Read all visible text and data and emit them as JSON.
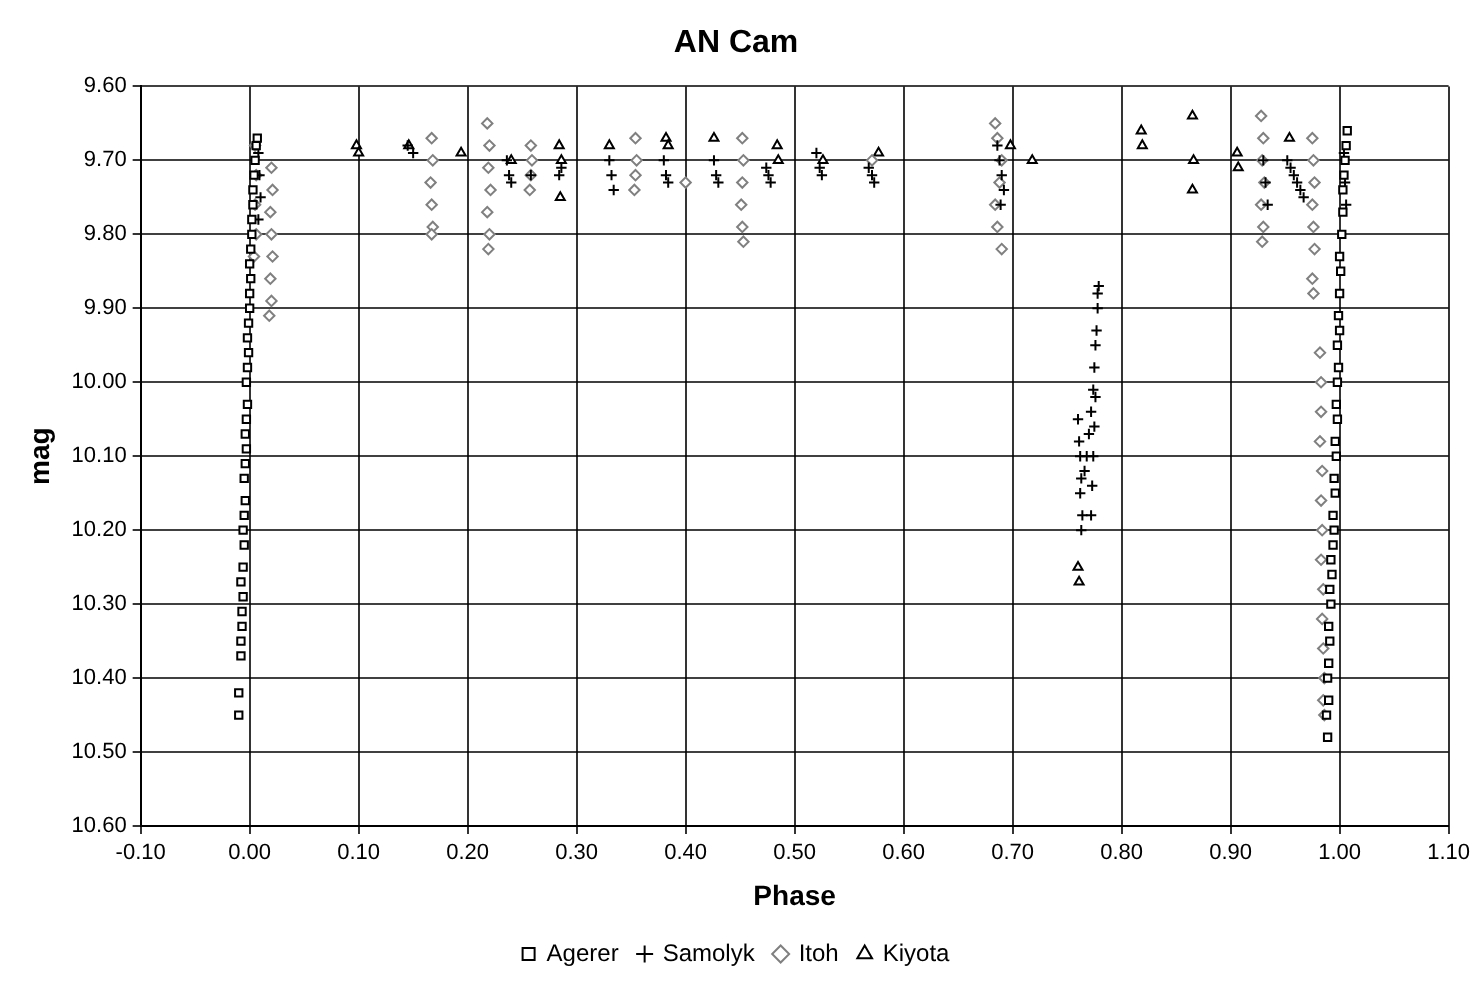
{
  "chart_data": {
    "type": "scatter",
    "title": "AN Cam",
    "xlabel": "Phase",
    "ylabel": "mag",
    "xlim": [
      -0.1,
      1.1
    ],
    "xticks": [
      {
        "value": -0.1,
        "label": "-0.10"
      },
      {
        "value": 0,
        "label": "0.00"
      },
      {
        "value": 0.1,
        "label": "0.10"
      },
      {
        "value": 0.2,
        "label": "0.20"
      },
      {
        "value": 0.3,
        "label": "0.30"
      },
      {
        "value": 0.4,
        "label": "0.40"
      },
      {
        "value": 0.5,
        "label": "0.50"
      },
      {
        "value": 0.6,
        "label": "0.60"
      },
      {
        "value": 0.7,
        "label": "0.70"
      },
      {
        "value": 0.8,
        "label": "0.80"
      },
      {
        "value": 0.9,
        "label": "0.90"
      },
      {
        "value": 1,
        "label": "1.00"
      },
      {
        "value": 1.1,
        "label": "1.10"
      }
    ],
    "ylim": [
      10.6,
      9.6
    ],
    "yticks": [
      {
        "value": 9.6,
        "label": "9.60"
      },
      {
        "value": 9.7,
        "label": "9.70"
      },
      {
        "value": 9.8,
        "label": "9.80"
      },
      {
        "value": 9.9,
        "label": "9.90"
      },
      {
        "value": 10,
        "label": "10.00"
      },
      {
        "value": 10.1,
        "label": "10.10"
      },
      {
        "value": 10.2,
        "label": "10.20"
      },
      {
        "value": 10.3,
        "label": "10.30"
      },
      {
        "value": 10.4,
        "label": "10.40"
      },
      {
        "value": 10.5,
        "label": "10.50"
      },
      {
        "value": 10.6,
        "label": "10.60"
      }
    ],
    "grid": true,
    "legend": "bottom",
    "series": [
      {
        "name": "Agerer",
        "color": "#000000",
        "marker": "square",
        "x": [
          -0.01,
          -0.01,
          -0.008,
          -0.008,
          -0.007,
          -0.007,
          -0.006,
          -0.008,
          -0.006,
          -0.005,
          -0.006,
          -0.005,
          -0.004,
          -0.005,
          -0.004,
          -0.003,
          -0.004,
          -0.003,
          -0.002,
          -0.003,
          -0.002,
          -0.001,
          -0.002,
          -0.001,
          0.0,
          0.0,
          0.001,
          0.0,
          0.001,
          0.002,
          0.002,
          0.003,
          0.003,
          0.004,
          0.005,
          0.006,
          0.007,
          0.989,
          0.988,
          0.99,
          0.989,
          0.99,
          0.991,
          0.99,
          0.992,
          0.991,
          0.993,
          0.992,
          0.994,
          0.995,
          0.994,
          0.996,
          0.995,
          0.997,
          0.996,
          0.998,
          0.997,
          0.998,
          0.999,
          0.998,
          1.0,
          0.999,
          1.0,
          1.001,
          1.0,
          1.002,
          1.003,
          1.003,
          1.004,
          1.005,
          1.006,
          1.007
        ],
        "values": [
          10.45,
          10.42,
          10.37,
          10.35,
          10.33,
          10.31,
          10.29,
          10.27,
          10.25,
          10.22,
          10.2,
          10.18,
          10.16,
          10.13,
          10.11,
          10.09,
          10.07,
          10.05,
          10.03,
          10.0,
          9.98,
          9.96,
          9.94,
          9.92,
          9.9,
          9.88,
          9.86,
          9.84,
          9.82,
          9.8,
          9.78,
          9.76,
          9.74,
          9.72,
          9.7,
          9.68,
          9.67,
          10.48,
          10.45,
          10.43,
          10.4,
          10.38,
          10.35,
          10.33,
          10.3,
          10.28,
          10.26,
          10.24,
          10.22,
          10.2,
          10.18,
          10.15,
          10.13,
          10.1,
          10.08,
          10.05,
          10.03,
          10.0,
          9.98,
          9.95,
          9.93,
          9.91,
          9.88,
          9.85,
          9.83,
          9.8,
          9.77,
          9.74,
          9.72,
          9.7,
          9.68,
          9.66
        ]
      },
      {
        "name": "Samolyk",
        "color": "#000000",
        "marker": "cross",
        "x": [
          0.008,
          0.009,
          0.01,
          0.008,
          0.145,
          0.15,
          0.236,
          0.238,
          0.24,
          0.258,
          0.284,
          0.286,
          0.33,
          0.332,
          0.334,
          0.38,
          0.382,
          0.384,
          0.426,
          0.428,
          0.43,
          0.474,
          0.476,
          0.478,
          0.52,
          0.523,
          0.525,
          0.568,
          0.571,
          0.573,
          0.686,
          0.688,
          0.69,
          0.692,
          0.689,
          0.76,
          0.761,
          0.762,
          0.763,
          0.762,
          0.764,
          0.763,
          0.766,
          0.768,
          0.77,
          0.772,
          0.774,
          0.775,
          0.776,
          0.777,
          0.778,
          0.778,
          0.779,
          0.776,
          0.775,
          0.774,
          0.773,
          0.772,
          0.93,
          0.932,
          0.934,
          0.952,
          0.955,
          0.958,
          0.961,
          0.964,
          0.967,
          1.004,
          1.005,
          1.006
        ],
        "values": [
          9.69,
          9.72,
          9.75,
          9.78,
          9.68,
          9.69,
          9.7,
          9.72,
          9.73,
          9.72,
          9.72,
          9.71,
          9.7,
          9.72,
          9.74,
          9.7,
          9.72,
          9.73,
          9.7,
          9.72,
          9.73,
          9.71,
          9.72,
          9.73,
          9.69,
          9.71,
          9.72,
          9.71,
          9.72,
          9.73,
          9.68,
          9.7,
          9.72,
          9.74,
          9.76,
          10.05,
          10.08,
          10.1,
          10.13,
          10.15,
          10.18,
          10.2,
          10.12,
          10.1,
          10.07,
          10.04,
          10.01,
          9.98,
          9.95,
          9.93,
          9.9,
          9.88,
          9.87,
          10.02,
          10.06,
          10.1,
          10.14,
          10.18,
          9.7,
          9.73,
          9.76,
          9.7,
          9.71,
          9.72,
          9.73,
          9.74,
          9.75,
          9.69,
          9.73,
          9.76
        ]
      },
      {
        "name": "Itoh",
        "color": "#808080",
        "marker": "diamond",
        "x": [
          0.005,
          0.006,
          0.005,
          0.006,
          0.004,
          0.02,
          0.021,
          0.019,
          0.02,
          0.021,
          0.019,
          0.02,
          0.018,
          0.167,
          0.168,
          0.166,
          0.167,
          0.168,
          0.167,
          0.218,
          0.22,
          0.219,
          0.221,
          0.218,
          0.22,
          0.219,
          0.258,
          0.259,
          0.258,
          0.257,
          0.354,
          0.355,
          0.354,
          0.353,
          0.4,
          0.452,
          0.453,
          0.452,
          0.451,
          0.452,
          0.453,
          0.571,
          0.684,
          0.686,
          0.69,
          0.688,
          0.684,
          0.686,
          0.69,
          0.928,
          0.93,
          0.929,
          0.931,
          0.928,
          0.93,
          0.929,
          0.975,
          0.976,
          0.977,
          0.975,
          0.976,
          0.977,
          0.975,
          0.976,
          0.982,
          0.983,
          0.983,
          0.982,
          0.984,
          0.983,
          0.984,
          0.983,
          0.985,
          0.984,
          0.985,
          0.986,
          0.985,
          0.986
        ],
        "values": [
          9.68,
          9.72,
          9.76,
          9.8,
          9.83,
          9.71,
          9.74,
          9.77,
          9.8,
          9.83,
          9.86,
          9.89,
          9.91,
          9.67,
          9.7,
          9.73,
          9.76,
          9.79,
          9.8,
          9.65,
          9.68,
          9.71,
          9.74,
          9.77,
          9.8,
          9.82,
          9.68,
          9.7,
          9.72,
          9.74,
          9.67,
          9.7,
          9.72,
          9.74,
          9.73,
          9.67,
          9.7,
          9.73,
          9.76,
          9.79,
          9.81,
          9.7,
          9.65,
          9.67,
          9.7,
          9.73,
          9.76,
          9.79,
          9.82,
          9.64,
          9.67,
          9.7,
          9.73,
          9.76,
          9.79,
          9.81,
          9.67,
          9.7,
          9.73,
          9.76,
          9.79,
          9.82,
          9.86,
          9.88,
          9.96,
          10.0,
          10.04,
          10.08,
          10.12,
          10.16,
          10.2,
          10.24,
          10.28,
          10.32,
          10.36,
          10.4,
          10.43,
          10.45
        ]
      },
      {
        "name": "Kiyota",
        "color": "#000000",
        "marker": "triangle",
        "x": [
          0.098,
          0.1,
          0.146,
          0.194,
          0.24,
          0.284,
          0.286,
          0.285,
          0.33,
          0.382,
          0.384,
          0.426,
          0.484,
          0.485,
          0.526,
          0.577,
          0.698,
          0.718,
          0.76,
          0.761,
          0.818,
          0.819,
          0.865,
          0.866,
          0.865,
          0.906,
          0.907,
          0.954
        ],
        "values": [
          9.68,
          9.69,
          9.68,
          9.69,
          9.7,
          9.68,
          9.7,
          9.75,
          9.68,
          9.67,
          9.68,
          9.67,
          9.68,
          9.7,
          9.7,
          9.69,
          9.68,
          9.7,
          10.25,
          10.27,
          9.66,
          9.68,
          9.64,
          9.7,
          9.74,
          9.69,
          9.71,
          9.67
        ]
      }
    ]
  }
}
